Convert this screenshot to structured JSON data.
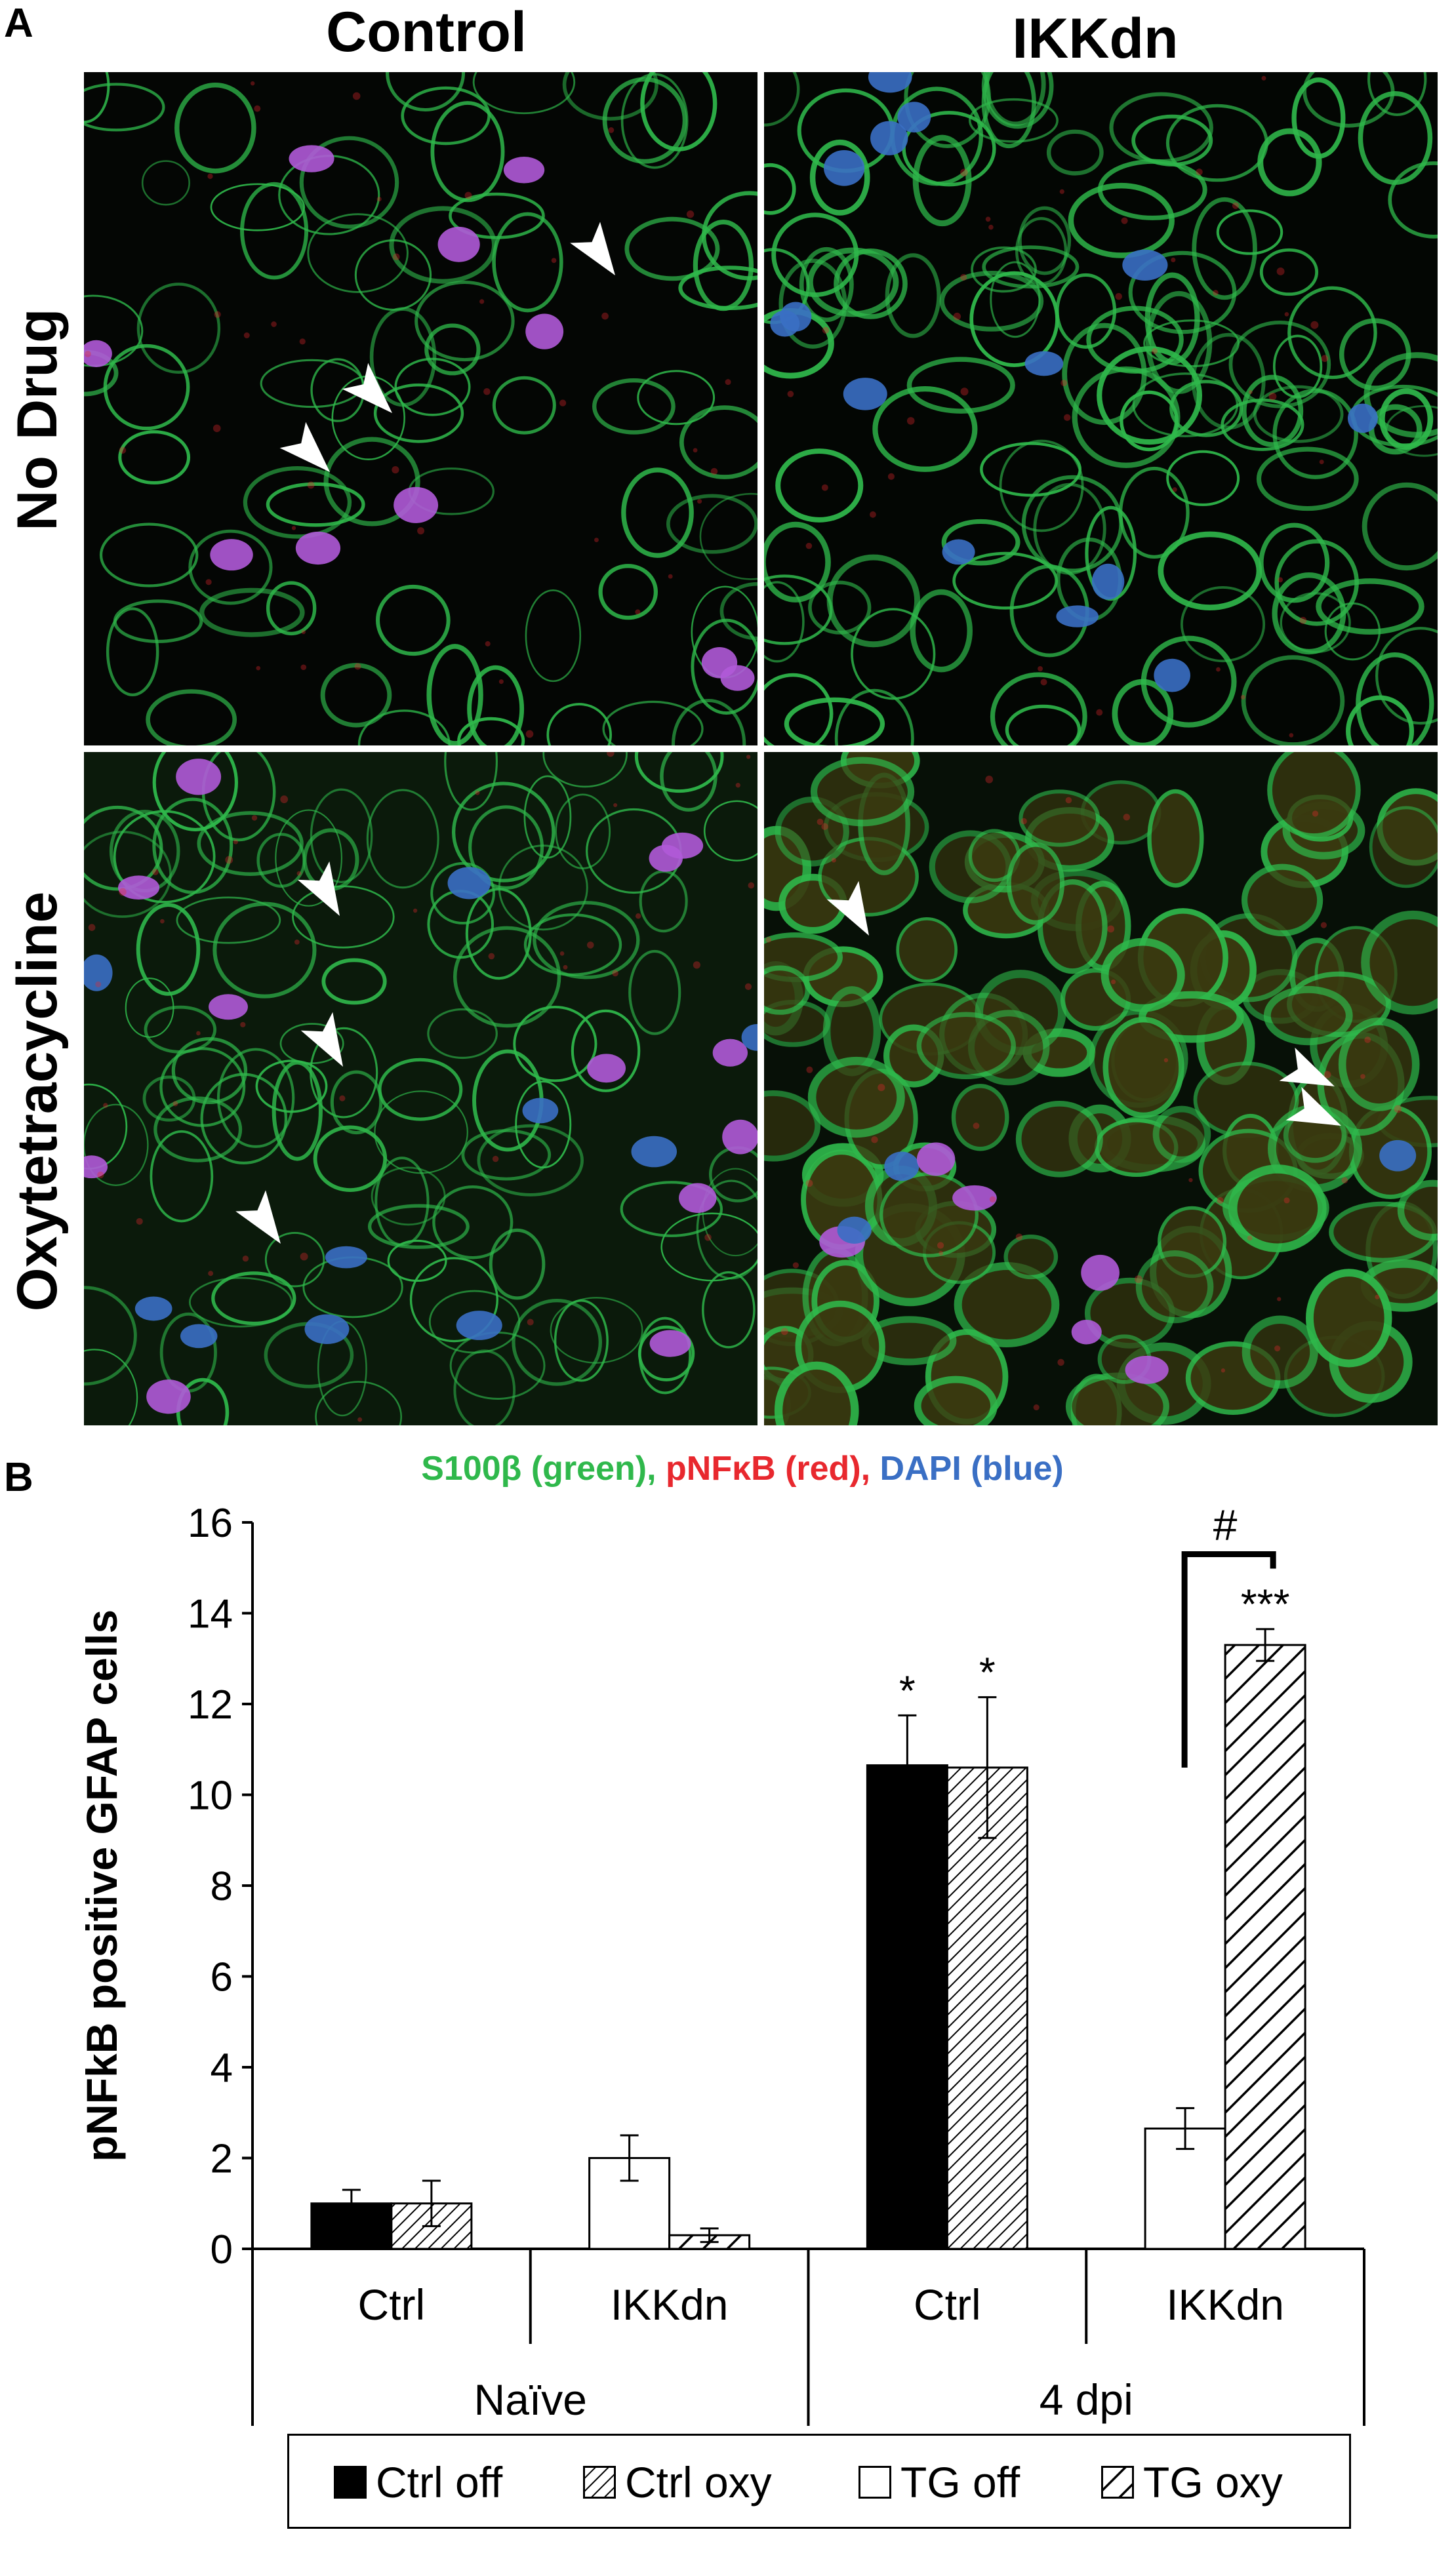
{
  "panel_a": {
    "letter": "A",
    "columns": [
      "Control",
      "IKKdn"
    ],
    "rows": [
      "No Drug",
      "Oxytetracycline"
    ]
  },
  "panel_b": {
    "letter": "B",
    "stain_legend": {
      "s100": "S100β (green),",
      "pnfkb": "pNFκB (red),",
      "dapi": "DAPI (blue)"
    }
  },
  "colors": {
    "green": "#2fb84b",
    "red": "#e8282e",
    "blue": "#3a6fc4",
    "bar_black": "#000000"
  },
  "chart_data": {
    "type": "bar",
    "ylabel": "pNFkB positive GFAP cells",
    "ylim": [
      0,
      16
    ],
    "yticks": [
      0,
      2,
      4,
      6,
      8,
      10,
      12,
      14,
      16
    ],
    "groups": [
      {
        "name": "Naïve",
        "subgroups": [
          {
            "name": "Ctrl",
            "bars": [
              {
                "series": "Ctrl off",
                "value": 1.0,
                "err": 0.3,
                "sig": ""
              },
              {
                "series": "Ctrl oxy",
                "value": 1.0,
                "err": 0.5,
                "sig": ""
              }
            ]
          },
          {
            "name": "IKKdn",
            "bars": [
              {
                "series": "TG off",
                "value": 2.0,
                "err": 0.5,
                "sig": ""
              },
              {
                "series": "TG oxy",
                "value": 0.3,
                "err": 0.15,
                "sig": ""
              }
            ]
          }
        ]
      },
      {
        "name": "4 dpi",
        "subgroups": [
          {
            "name": "Ctrl",
            "bars": [
              {
                "series": "Ctrl off",
                "value": 10.65,
                "err": 1.1,
                "sig": "*"
              },
              {
                "series": "Ctrl oxy",
                "value": 10.6,
                "err": 1.55,
                "sig": "*"
              }
            ]
          },
          {
            "name": "IKKdn",
            "bars": [
              {
                "series": "TG off",
                "value": 2.65,
                "err": 0.45,
                "sig": ""
              },
              {
                "series": "TG oxy",
                "value": 13.3,
                "err": 0.35,
                "sig": "***"
              }
            ]
          }
        ]
      }
    ],
    "comparison_marker": "#",
    "series": [
      {
        "name": "Ctrl off",
        "fill": "solid-black"
      },
      {
        "name": "Ctrl oxy",
        "fill": "fine-hatch"
      },
      {
        "name": "TG off",
        "fill": "white"
      },
      {
        "name": "TG oxy",
        "fill": "coarse-hatch"
      }
    ]
  }
}
